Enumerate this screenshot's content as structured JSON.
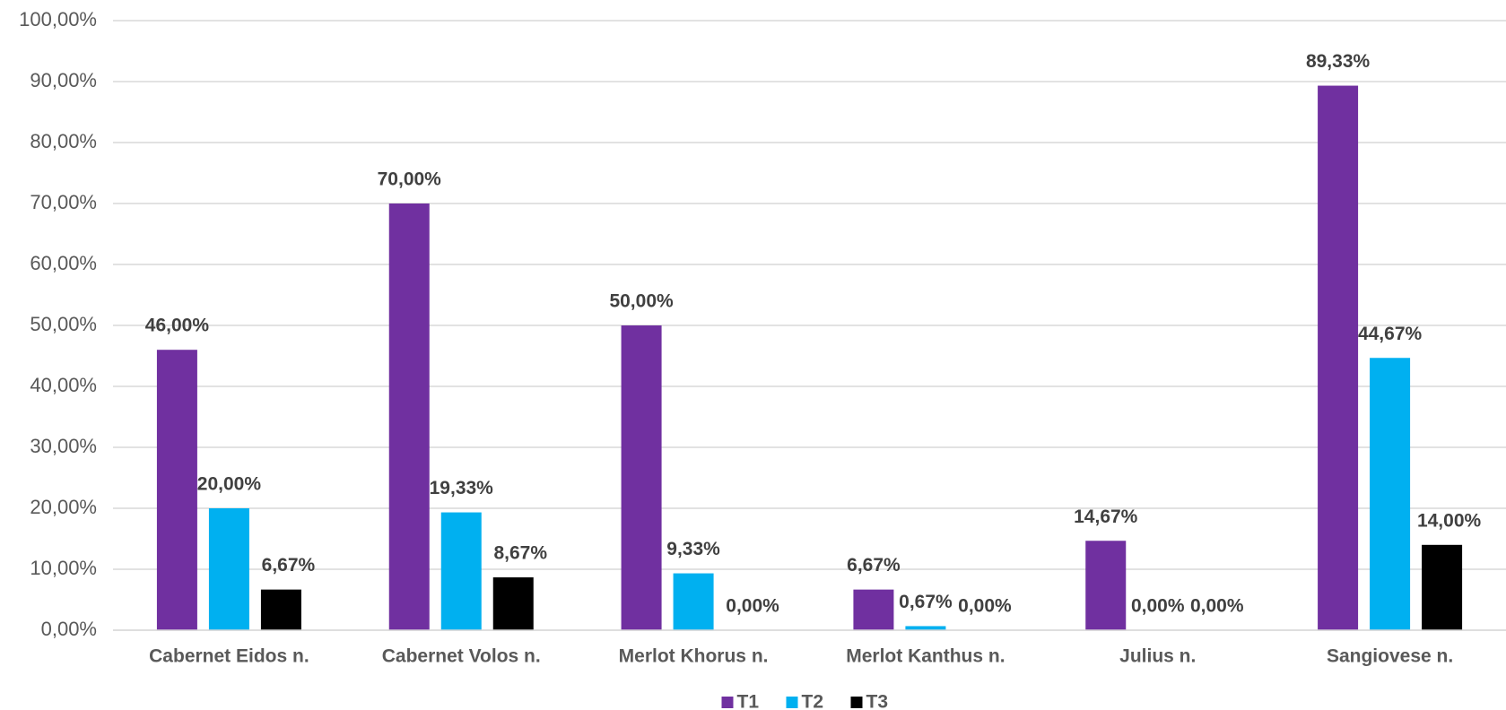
{
  "chart_data": {
    "type": "bar",
    "categories": [
      "Cabernet Eidos n.",
      "Cabernet Volos n.",
      "Merlot Khorus n.",
      "Merlot Kanthus n.",
      "Julius n.",
      "Sangiovese n."
    ],
    "series": [
      {
        "name": "T1",
        "color": "#7030a0",
        "values": [
          46,
          70,
          50,
          6.67,
          14.67,
          89.33
        ],
        "value_labels": [
          "46,00%",
          "70,00%",
          "50,00%",
          "6,67%",
          "14,67%",
          "89,33%"
        ]
      },
      {
        "name": "T2",
        "color": "#00b0f0",
        "values": [
          20,
          19.33,
          9.33,
          0.67,
          0,
          44.67
        ],
        "value_labels": [
          "20,00%",
          "19,33%",
          "9,33%",
          "0,67%",
          "0,00%",
          "44,67%"
        ]
      },
      {
        "name": "T3",
        "color": "#000000",
        "values": [
          6.67,
          8.67,
          0,
          0,
          0,
          14
        ],
        "value_labels": [
          "6,67%",
          "8,67%",
          "0,00%",
          "0,00%",
          "0,00%",
          "14,00%"
        ]
      }
    ],
    "ylim": [
      0,
      100
    ],
    "yticks": [
      {
        "value": 0,
        "label": "0,00%"
      },
      {
        "value": 10,
        "label": "10,00%"
      },
      {
        "value": 20,
        "label": "20,00%"
      },
      {
        "value": 30,
        "label": "30,00%"
      },
      {
        "value": 40,
        "label": "40,00%"
      },
      {
        "value": 50,
        "label": "50,00%"
      },
      {
        "value": 60,
        "label": "60,00%"
      },
      {
        "value": 70,
        "label": "70,00%"
      },
      {
        "value": 80,
        "label": "80,00%"
      },
      {
        "value": 90,
        "label": "90,00%"
      },
      {
        "value": 100,
        "label": "100,00%"
      }
    ],
    "grid": true,
    "legend": "bottom"
  }
}
